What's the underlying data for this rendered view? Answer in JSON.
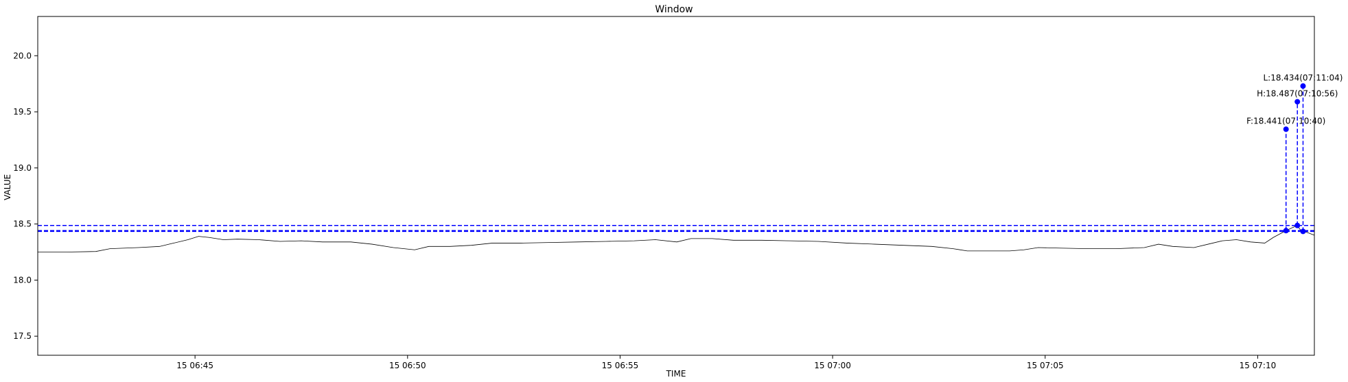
{
  "chart_data": {
    "type": "line",
    "title": "Window",
    "xlabel": "TIME",
    "ylabel": "VALUE",
    "x_range": [
      "2024-01-15T06:41:18",
      "2024-01-15T07:11:20"
    ],
    "ylim": [
      17.33,
      20.35
    ],
    "x_ticks": [
      {
        "t": "06:45:00",
        "label": "15 06:45"
      },
      {
        "t": "06:50:00",
        "label": "15 06:50"
      },
      {
        "t": "06:55:00",
        "label": "15 06:55"
      },
      {
        "t": "07:00:00",
        "label": "15 07:00"
      },
      {
        "t": "07:05:00",
        "label": "15 07:05"
      },
      {
        "t": "07:10:00",
        "label": "15 07:10"
      }
    ],
    "y_ticks": [
      17.5,
      18.0,
      18.5,
      19.0,
      19.5,
      20.0
    ],
    "y_tick_labels": [
      "17.5",
      "18.0",
      "18.5",
      "19.0",
      "19.5",
      "20.0"
    ],
    "series": [
      {
        "color": "#000000",
        "points": [
          [
            "06:41:18",
            18.25
          ],
          [
            "06:42:00",
            18.25
          ],
          [
            "06:42:40",
            18.255
          ],
          [
            "06:43:00",
            18.28
          ],
          [
            "06:43:40",
            18.29
          ],
          [
            "06:44:10",
            18.3
          ],
          [
            "06:44:30",
            18.33
          ],
          [
            "06:44:50",
            18.36
          ],
          [
            "06:45:05",
            18.39
          ],
          [
            "06:45:20",
            18.38
          ],
          [
            "06:45:40",
            18.36
          ],
          [
            "06:46:00",
            18.365
          ],
          [
            "06:46:30",
            18.36
          ],
          [
            "06:47:00",
            18.345
          ],
          [
            "06:47:30",
            18.35
          ],
          [
            "06:48:00",
            18.34
          ],
          [
            "06:48:40",
            18.34
          ],
          [
            "06:49:10",
            18.32
          ],
          [
            "06:49:40",
            18.29
          ],
          [
            "06:50:10",
            18.27
          ],
          [
            "06:50:30",
            18.3
          ],
          [
            "06:51:00",
            18.3
          ],
          [
            "06:51:30",
            18.31
          ],
          [
            "06:52:00",
            18.33
          ],
          [
            "06:52:40",
            18.33
          ],
          [
            "06:53:20",
            18.335
          ],
          [
            "06:54:00",
            18.34
          ],
          [
            "06:54:40",
            18.345
          ],
          [
            "06:55:20",
            18.35
          ],
          [
            "06:55:50",
            18.36
          ],
          [
            "06:56:20",
            18.34
          ],
          [
            "06:56:40",
            18.37
          ],
          [
            "06:57:10",
            18.37
          ],
          [
            "06:57:40",
            18.355
          ],
          [
            "06:58:20",
            18.355
          ],
          [
            "06:59:00",
            18.35
          ],
          [
            "06:59:40",
            18.345
          ],
          [
            "07:00:20",
            18.33
          ],
          [
            "07:01:00",
            18.32
          ],
          [
            "07:01:40",
            18.31
          ],
          [
            "07:02:20",
            18.3
          ],
          [
            "07:02:50",
            18.28
          ],
          [
            "07:03:10",
            18.26
          ],
          [
            "07:03:40",
            18.26
          ],
          [
            "07:04:10",
            18.26
          ],
          [
            "07:04:30",
            18.27
          ],
          [
            "07:04:50",
            18.29
          ],
          [
            "07:05:20",
            18.285
          ],
          [
            "07:06:00",
            18.28
          ],
          [
            "07:06:40",
            18.28
          ],
          [
            "07:07:20",
            18.29
          ],
          [
            "07:07:40",
            18.32
          ],
          [
            "07:08:00",
            18.3
          ],
          [
            "07:08:30",
            18.29
          ],
          [
            "07:08:50",
            18.32
          ],
          [
            "07:09:10",
            18.35
          ],
          [
            "07:09:30",
            18.36
          ],
          [
            "07:09:50",
            18.34
          ],
          [
            "07:10:10",
            18.33
          ],
          [
            "07:10:22",
            18.38
          ],
          [
            "07:10:40",
            18.441
          ],
          [
            "07:10:50",
            18.47
          ],
          [
            "07:10:56",
            18.487
          ],
          [
            "07:11:00",
            18.45
          ],
          [
            "07:11:04",
            18.434
          ],
          [
            "07:11:12",
            18.42
          ],
          [
            "07:11:20",
            18.4
          ]
        ]
      }
    ],
    "h_lines": [
      {
        "y": 18.487,
        "color": "#0000ff",
        "style": "dashed"
      },
      {
        "y": 18.441,
        "color": "#0000ff",
        "style": "dashed"
      },
      {
        "y": 18.434,
        "color": "#0000ff",
        "style": "dashed"
      }
    ],
    "markers": [
      {
        "t": "07:10:40",
        "y_low": 18.441,
        "y_top": 19.345,
        "label": "F:18.441(07:10:40)"
      },
      {
        "t": "07:10:56",
        "y_low": 18.487,
        "y_top": 19.59,
        "label": "H:18.487(07:10:56)"
      },
      {
        "t": "07:11:04",
        "y_low": 18.434,
        "y_top": 19.73,
        "label": "L:18.434(07:11:04)"
      }
    ],
    "marker_color": "#0000ff",
    "grid": false,
    "legend": "none"
  }
}
